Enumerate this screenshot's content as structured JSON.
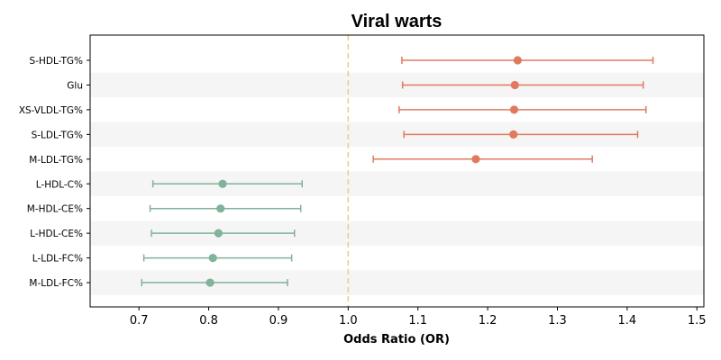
{
  "chart_data": {
    "type": "forest",
    "title": "Viral warts",
    "xlabel": "Odds Ratio (OR)",
    "ylabel": "",
    "xlim": [
      0.63,
      1.51
    ],
    "xticks": [
      "0.7",
      "0.8",
      "0.9",
      "1.0",
      "1.1",
      "1.2",
      "1.3",
      "1.4",
      "1.5"
    ],
    "reference_line": 1.0,
    "grid": false,
    "alternating_row_shading": true,
    "colors": {
      "risk": "#E07A5F",
      "protective": "#81B29A",
      "reference_line": "#F2CC8F",
      "row_shade": "#F5F5F5"
    },
    "rows": [
      {
        "label": "S-HDL-TG%",
        "or": 1.243,
        "lower": 1.077,
        "upper": 1.437,
        "group": "risk"
      },
      {
        "label": "Glu",
        "or": 1.239,
        "lower": 1.078,
        "upper": 1.423,
        "group": "risk"
      },
      {
        "label": "XS-VLDL-TG%",
        "or": 1.238,
        "lower": 1.073,
        "upper": 1.427,
        "group": "risk"
      },
      {
        "label": "S-LDL-TG%",
        "or": 1.237,
        "lower": 1.08,
        "upper": 1.415,
        "group": "risk"
      },
      {
        "label": "M-LDL-TG%",
        "or": 1.183,
        "lower": 1.036,
        "upper": 1.35,
        "group": "risk"
      },
      {
        "label": "L-HDL-C%",
        "or": 0.82,
        "lower": 0.72,
        "upper": 0.934,
        "group": "protective"
      },
      {
        "label": "M-HDL-CE%",
        "or": 0.817,
        "lower": 0.716,
        "upper": 0.932,
        "group": "protective"
      },
      {
        "label": "L-HDL-CE%",
        "or": 0.814,
        "lower": 0.718,
        "upper": 0.923,
        "group": "protective"
      },
      {
        "label": "L-LDL-FC%",
        "or": 0.806,
        "lower": 0.707,
        "upper": 0.919,
        "group": "protective"
      },
      {
        "label": "M-LDL-FC%",
        "or": 0.802,
        "lower": 0.704,
        "upper": 0.913,
        "group": "protective"
      }
    ]
  }
}
